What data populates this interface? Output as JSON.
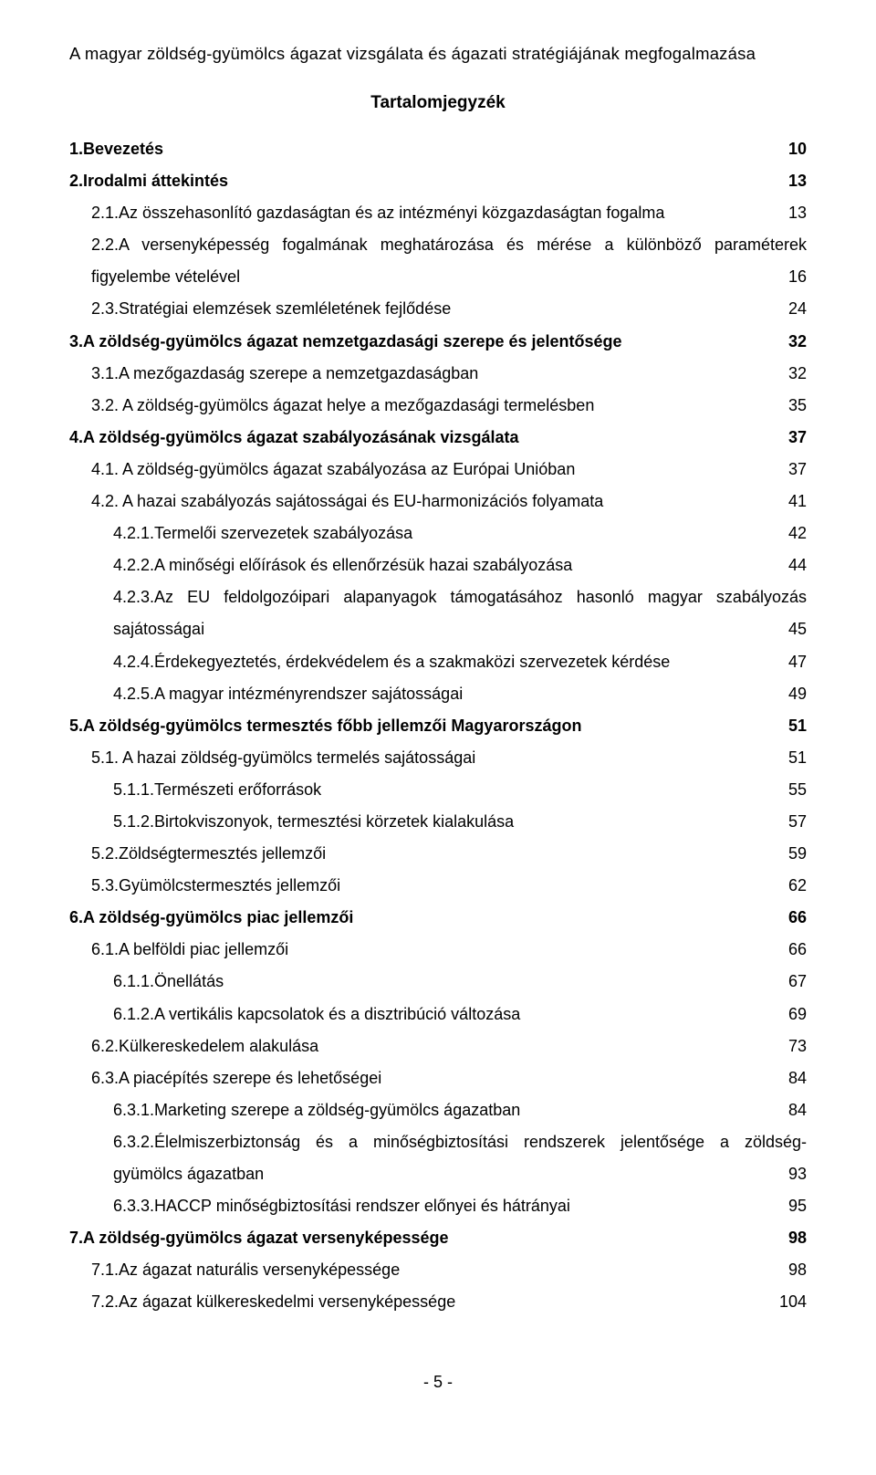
{
  "header": "A magyar zöldség-gyümölcs ágazat vizsgálata és ágazati stratégiájának megfogalmazása",
  "toc_title": "Tartalomjegyzék",
  "footer": "- 5 -",
  "entries": [
    {
      "indent": 0,
      "bold": true,
      "label": "1.Bevezetés",
      "page": "10"
    },
    {
      "indent": 0,
      "bold": true,
      "label": "2.Irodalmi áttekintés",
      "page": "13"
    },
    {
      "indent": 1,
      "bold": false,
      "label": "2.1.Az összehasonlító gazdaságtan és az intézményi közgazdaságtan fogalma",
      "page": "13"
    },
    {
      "indent": 1,
      "bold": false,
      "multiline": true,
      "line1": "2.2.A versenyképesség fogalmának meghatározása és mérése a különböző paraméterek",
      "line2": "figyelembe vételével",
      "page": "16"
    },
    {
      "indent": 1,
      "bold": false,
      "label": "2.3.Stratégiai elemzések szemléletének fejlődése",
      "page": "24"
    },
    {
      "indent": 0,
      "bold": true,
      "label": "3.A zöldség-gyümölcs ágazat nemzetgazdasági szerepe és jelentősége",
      "page": "32"
    },
    {
      "indent": 1,
      "bold": false,
      "label": "3.1.A mezőgazdaság szerepe a nemzetgazdaságban",
      "page": "32"
    },
    {
      "indent": 1,
      "bold": false,
      "label": "3.2. A zöldség-gyümölcs ágazat helye a mezőgazdasági termelésben",
      "page": "35"
    },
    {
      "indent": 0,
      "bold": true,
      "label": "4.A zöldség-gyümölcs ágazat szabályozásának vizsgálata",
      "page": "37"
    },
    {
      "indent": 1,
      "bold": false,
      "label": "4.1. A zöldség-gyümölcs ágazat szabályozása az Európai Unióban",
      "page": "37"
    },
    {
      "indent": 1,
      "bold": false,
      "label": "4.2. A hazai szabályozás sajátosságai és EU-harmonizációs folyamata",
      "page": "41"
    },
    {
      "indent": 2,
      "bold": false,
      "label": "4.2.1.Termelői szervezetek szabályozása",
      "page": "42"
    },
    {
      "indent": 2,
      "bold": false,
      "label": "4.2.2.A minőségi előírások és ellenőrzésük hazai szabályozása",
      "page": "44"
    },
    {
      "indent": 2,
      "bold": false,
      "multiline": true,
      "line1": "4.2.3.Az EU feldolgozóipari alapanyagok támogatásához hasonló magyar szabályozás",
      "line2": "sajátosságai",
      "page": "45"
    },
    {
      "indent": 2,
      "bold": false,
      "label": "4.2.4.Érdekegyeztetés, érdekvédelem és a szakmaközi szervezetek kérdése",
      "page": "47"
    },
    {
      "indent": 2,
      "bold": false,
      "label": "4.2.5.A magyar intézményrendszer sajátosságai",
      "page": "49"
    },
    {
      "indent": 0,
      "bold": true,
      "label": "5.A zöldség-gyümölcs termesztés főbb jellemzői Magyarországon",
      "page": "51"
    },
    {
      "indent": 1,
      "bold": false,
      "label": "5.1. A hazai zöldség-gyümölcs termelés sajátosságai",
      "page": "51"
    },
    {
      "indent": 2,
      "bold": false,
      "label": "5.1.1.Természeti erőforrások",
      "page": "55"
    },
    {
      "indent": 2,
      "bold": false,
      "label": "5.1.2.Birtokviszonyok, termesztési körzetek kialakulása",
      "page": "57"
    },
    {
      "indent": 1,
      "bold": false,
      "label": "5.2.Zöldségtermesztés jellemzői",
      "page": "59"
    },
    {
      "indent": 1,
      "bold": false,
      "label": "5.3.Gyümölcstermesztés jellemzői",
      "page": "62"
    },
    {
      "indent": 0,
      "bold": true,
      "label": "6.A zöldség-gyümölcs piac jellemzői ",
      "page": "66"
    },
    {
      "indent": 1,
      "bold": false,
      "label": "6.1.A belföldi piac jellemzői",
      "page": "66"
    },
    {
      "indent": 2,
      "bold": false,
      "label": "6.1.1.Önellátás",
      "page": "67"
    },
    {
      "indent": 2,
      "bold": false,
      "label": "6.1.2.A vertikális kapcsolatok és a disztribúció változása",
      "page": "69"
    },
    {
      "indent": 1,
      "bold": false,
      "label": "6.2.Külkereskedelem alakulása",
      "page": "73"
    },
    {
      "indent": 1,
      "bold": false,
      "label": "6.3.A piacépítés szerepe és lehetőségei",
      "page": "84"
    },
    {
      "indent": 2,
      "bold": false,
      "label": "6.3.1.Marketing szerepe a zöldség-gyümölcs ágazatban",
      "page": "84"
    },
    {
      "indent": 2,
      "bold": false,
      "multiline": true,
      "line1": "6.3.2.Élelmiszerbiztonság és a minőségbiztosítási rendszerek jelentősége a zöldség-",
      "line2": "gyümölcs ágazatban",
      "page": "93"
    },
    {
      "indent": 2,
      "bold": false,
      "label": "6.3.3.HACCP minőségbiztosítási rendszer előnyei és hátrányai",
      "page": "95"
    },
    {
      "indent": 0,
      "bold": true,
      "label": "7.A zöldség-gyümölcs ágazat versenyképessége",
      "page": "98"
    },
    {
      "indent": 1,
      "bold": false,
      "label": "7.1.Az ágazat naturális versenyképessége",
      "page": "98"
    },
    {
      "indent": 1,
      "bold": false,
      "label": "7.2.Az ágazat külkereskedelmi versenyképessége",
      "page": "104"
    }
  ]
}
